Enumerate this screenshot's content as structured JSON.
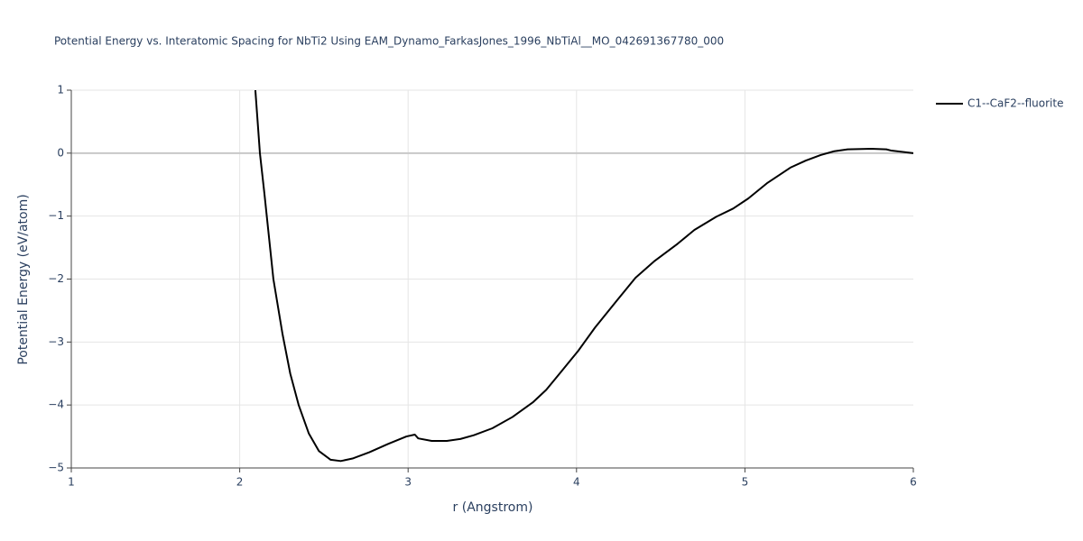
{
  "chart_data": {
    "type": "line",
    "title": "Potential Energy vs. Interatomic Spacing for NbTi2 Using EAM_Dynamo_FarkasJones_1996_NbTiAl__MO_042691367780_000",
    "x_label": "r (Angstrom)",
    "y_label": "Potential Energy (eV/atom)",
    "xlim": [
      1,
      6
    ],
    "ylim": [
      -5,
      1
    ],
    "xticks": [
      1,
      2,
      3,
      4,
      5,
      6
    ],
    "yticks": [
      {
        "value": -5,
        "label": "−5"
      },
      {
        "value": -4,
        "label": "−4"
      },
      {
        "value": -3,
        "label": "−3"
      },
      {
        "value": -2,
        "label": "−2"
      },
      {
        "value": -1,
        "label": "−1"
      },
      0,
      1
    ],
    "grid": true,
    "legend_position": "right",
    "x": [
      2.093,
      2.12,
      2.147,
      2.2,
      2.254,
      2.3,
      2.35,
      2.41,
      2.47,
      2.54,
      2.6,
      2.67,
      2.77,
      2.88,
      2.99,
      3.04,
      3.06,
      3.14,
      3.23,
      3.31,
      3.39,
      3.5,
      3.62,
      3.74,
      3.82,
      3.9,
      4.01,
      4.11,
      4.24,
      4.35,
      4.46,
      4.6,
      4.7,
      4.83,
      4.93,
      5.02,
      5.13,
      5.27,
      5.36,
      5.45,
      5.53,
      5.61,
      5.75,
      5.84,
      5.87,
      6.0
    ],
    "series": [
      {
        "name": "C1--CaF2--fluorite",
        "color": "#000000",
        "values": [
          1.0,
          0.0,
          -0.65,
          -2.0,
          -2.87,
          -3.5,
          -4.0,
          -4.45,
          -4.73,
          -4.87,
          -4.89,
          -4.85,
          -4.75,
          -4.62,
          -4.5,
          -4.47,
          -4.53,
          -4.57,
          -4.57,
          -4.54,
          -4.48,
          -4.37,
          -4.19,
          -3.96,
          -3.76,
          -3.5,
          -3.14,
          -2.77,
          -2.34,
          -1.98,
          -1.72,
          -1.44,
          -1.22,
          -1.01,
          -0.88,
          -0.72,
          -0.48,
          -0.23,
          -0.12,
          -0.03,
          0.03,
          0.06,
          0.07,
          0.06,
          0.04,
          0.0
        ]
      }
    ]
  }
}
